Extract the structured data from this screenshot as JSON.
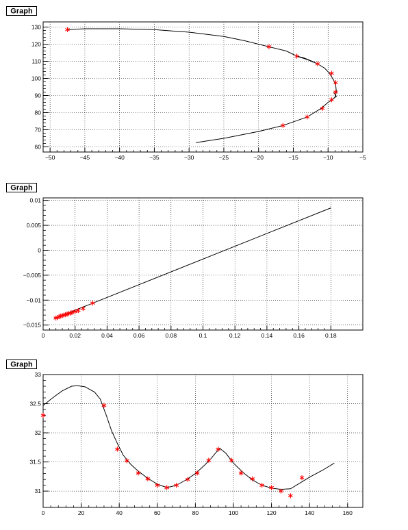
{
  "footer_text": "",
  "chart_data": [
    {
      "type": "scatter",
      "title": "Graph",
      "xlabel": "",
      "ylabel": "",
      "xlim": [
        -51,
        -5
      ],
      "ylim": [
        57,
        133
      ],
      "xticks": [
        -50,
        -45,
        -40,
        -35,
        -30,
        -25,
        -20,
        -15,
        -10,
        -5
      ],
      "yticks": [
        60,
        70,
        80,
        90,
        100,
        110,
        120,
        130
      ],
      "grid": true,
      "line_color": "#000000",
      "marker_color": "#ff0000",
      "series": [
        {
          "kind": "line",
          "points": [
            [
              -47.5,
              128.5
            ],
            [
              -45,
              129
            ],
            [
              -40,
              129
            ],
            [
              -35,
              128.5
            ],
            [
              -30,
              127
            ],
            [
              -25,
              124.5
            ],
            [
              -22,
              122
            ],
            [
              -18.5,
              118.5
            ],
            [
              -16,
              116
            ],
            [
              -14.5,
              113
            ],
            [
              -13,
              111
            ],
            [
              -11.5,
              108.5
            ],
            [
              -10.5,
              106
            ],
            [
              -9.8,
              103
            ],
            [
              -9.2,
              99
            ],
            [
              -8.9,
              96
            ],
            [
              -8.8,
              92
            ],
            [
              -9,
              89
            ],
            [
              -9.4,
              87.5
            ],
            [
              -10,
              86
            ],
            [
              -11,
              82.5
            ],
            [
              -13,
              77.5
            ],
            [
              -16.5,
              72.5
            ],
            [
              -20,
              69
            ],
            [
              -25,
              65
            ],
            [
              -29,
              62.5
            ]
          ]
        },
        {
          "kind": "line",
          "points": [
            [
              -14.5,
              113
            ],
            [
              -13.5,
              112
            ],
            [
              -12.3,
              110
            ],
            [
              -11.5,
              108.5
            ]
          ]
        },
        {
          "kind": "line",
          "points": [
            [
              -9.2,
              92
            ],
            [
              -8.8,
              89.5
            ],
            [
              -9.5,
              87.5
            ]
          ]
        },
        {
          "kind": "markers",
          "points": [
            [
              -47.5,
              128.5
            ],
            [
              -18.5,
              118.5
            ],
            [
              -14.5,
              113
            ],
            [
              -11.5,
              108.5
            ],
            [
              -9.5,
              103
            ],
            [
              -8.9,
              97.5
            ],
            [
              -8.9,
              92
            ],
            [
              -9.5,
              87.5
            ],
            [
              -10.8,
              82.5
            ],
            [
              -13,
              77.5
            ],
            [
              -16.5,
              72.5
            ]
          ]
        }
      ]
    },
    {
      "type": "scatter",
      "title": "Graph",
      "xlabel": "",
      "ylabel": "",
      "xlim": [
        0,
        0.2
      ],
      "ylim": [
        -0.016,
        0.0105
      ],
      "xticks": [
        "0",
        "0.02",
        "0.04",
        "0.06",
        "0.08",
        "0.1",
        "0.12",
        "0.14",
        "0.16",
        "0.18"
      ],
      "xtick_values": [
        0,
        0.02,
        0.04,
        0.06,
        0.08,
        0.1,
        0.12,
        0.14,
        0.16,
        0.18
      ],
      "yticks": [
        "-0.015",
        "-0.01",
        "-0.005",
        "0",
        "0.005",
        "0.01"
      ],
      "ytick_values": [
        -0.015,
        -0.01,
        -0.005,
        0,
        0.005,
        0.01
      ],
      "grid": true,
      "line_color": "#000000",
      "marker_color": "#ff0000",
      "series": [
        {
          "kind": "line",
          "points": [
            [
              0.007,
              -0.0137
            ],
            [
              0.18,
              0.0085
            ]
          ]
        },
        {
          "kind": "markers",
          "points": [
            [
              0.008,
              -0.0136
            ],
            [
              0.009,
              -0.0135
            ],
            [
              0.01,
              -0.0133
            ],
            [
              0.011,
              -0.0132
            ],
            [
              0.012,
              -0.0131
            ],
            [
              0.013,
              -0.013
            ],
            [
              0.014,
              -0.0129
            ],
            [
              0.015,
              -0.0128
            ],
            [
              0.016,
              -0.0127
            ],
            [
              0.017,
              -0.0126
            ],
            [
              0.018,
              -0.0125
            ],
            [
              0.02,
              -0.0123
            ],
            [
              0.022,
              -0.0121
            ],
            [
              0.025,
              -0.0117
            ],
            [
              0.031,
              -0.0106
            ]
          ]
        }
      ]
    },
    {
      "type": "scatter",
      "title": "Graph",
      "xlabel": "",
      "ylabel": "",
      "xlim": [
        0,
        168
      ],
      "ylim": [
        30.72,
        33.0
      ],
      "xticks": [
        0,
        20,
        40,
        60,
        80,
        100,
        120,
        140,
        160
      ],
      "yticks": [
        31,
        31.5,
        32,
        32.5,
        33
      ],
      "grid": true,
      "line_color": "#000000",
      "marker_color": "#ff0000",
      "series": [
        {
          "kind": "line",
          "points": [
            [
              0,
              32.47
            ],
            [
              5,
              32.6
            ],
            [
              10,
              32.72
            ],
            [
              15,
              32.8
            ],
            [
              18,
              32.81
            ],
            [
              22,
              32.79
            ],
            [
              27,
              32.7
            ],
            [
              30,
              32.58
            ],
            [
              33,
              32.32
            ],
            [
              36,
              32.03
            ],
            [
              39,
              31.82
            ],
            [
              42,
              31.62
            ],
            [
              46,
              31.46
            ],
            [
              50,
              31.34
            ],
            [
              55,
              31.22
            ],
            [
              60,
              31.12
            ],
            [
              65,
              31.06
            ],
            [
              70,
              31.1
            ],
            [
              75,
              31.19
            ],
            [
              80,
              31.3
            ],
            [
              85,
              31.45
            ],
            [
              88,
              31.55
            ],
            [
              91,
              31.67
            ],
            [
              93,
              31.73
            ],
            [
              96,
              31.65
            ],
            [
              100,
              31.48
            ],
            [
              105,
              31.32
            ],
            [
              110,
              31.19
            ],
            [
              115,
              31.1
            ],
            [
              120,
              31.05
            ],
            [
              125,
              31.03
            ],
            [
              130,
              31.04
            ],
            [
              135,
              31.14
            ],
            [
              140,
              31.24
            ],
            [
              147,
              31.36
            ],
            [
              153,
              31.48
            ]
          ]
        },
        {
          "kind": "markers",
          "points": [
            [
              0,
              32.3
            ],
            [
              32,
              32.47
            ],
            [
              39,
              31.72
            ],
            [
              44,
              31.52
            ],
            [
              50,
              31.31
            ],
            [
              55,
              31.21
            ],
            [
              60,
              31.1
            ],
            [
              65,
              31.06
            ],
            [
              70,
              31.1
            ],
            [
              76,
              31.2
            ],
            [
              81,
              31.31
            ],
            [
              87,
              31.53
            ],
            [
              92,
              31.72
            ],
            [
              99,
              31.53
            ],
            [
              104,
              31.31
            ],
            [
              110,
              31.21
            ],
            [
              115,
              31.1
            ],
            [
              120,
              31.06
            ],
            [
              125,
              31.0
            ],
            [
              130,
              30.92
            ],
            [
              136,
              31.23
            ]
          ]
        }
      ]
    }
  ]
}
